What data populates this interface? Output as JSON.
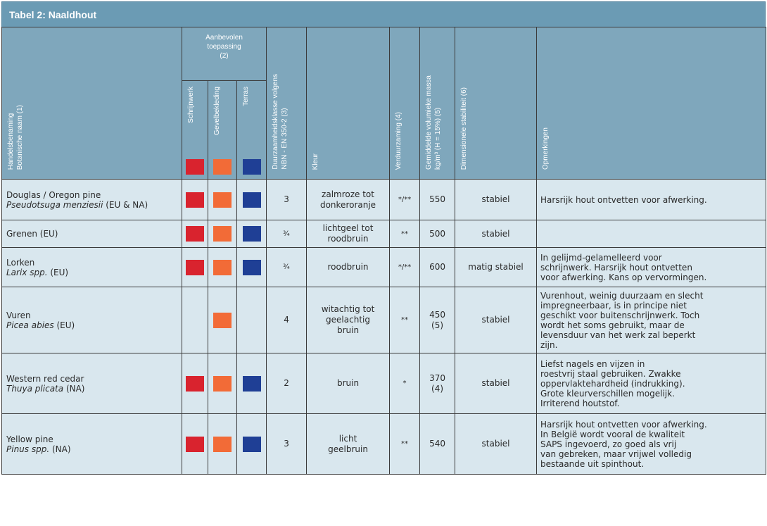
{
  "table": {
    "title": "Tabel 2: Naaldhout",
    "headers": {
      "name": [
        "Handelsbenaming",
        "Botanische naam (1)"
      ],
      "application_group": [
        "Aanbevolen",
        "toepassing",
        "(2)"
      ],
      "applications": [
        {
          "label": "Schrijnwerk",
          "color": "#d9232e"
        },
        {
          "label": "Gevelbekleding",
          "color": "#f26b37"
        },
        {
          "label": "Terras",
          "color": "#1f3f95"
        }
      ],
      "durability": [
        "Duurzaamheidsklasse volgens",
        "NBN - EN 350-2 (3)"
      ],
      "colour": "Kleur",
      "treatment": "Verduurzaming  (4)",
      "density": [
        "Gemiddelde volumieke massa",
        "kg/m³ (H = 15%) (5)"
      ],
      "stability": "Dimensionele stabiliteit (6)",
      "remarks": "Opmerkingen"
    },
    "rows": [
      {
        "trade_name": "Douglas / Oregon pine",
        "botanical": "Pseudotsuga menziesii",
        "origin": "(EU & NA)",
        "applications": [
          true,
          true,
          true
        ],
        "durability": "3",
        "colour": [
          "zalmroze tot",
          "donkeroranje"
        ],
        "treatment": "*/**",
        "density": [
          "550"
        ],
        "stability": "stabiel",
        "remarks": [
          "Harsrijk hout ontvetten voor afwerking."
        ]
      },
      {
        "trade_name": "Grenen (EU)",
        "botanical": "",
        "origin": "",
        "applications": [
          true,
          true,
          true
        ],
        "durability": "¾",
        "colour": [
          "lichtgeel tot",
          "roodbruin"
        ],
        "treatment": "**",
        "density": [
          "500"
        ],
        "stability": "stabiel",
        "remarks": []
      },
      {
        "trade_name": "Lorken",
        "botanical": "Larix spp.",
        "origin": "(EU)",
        "applications": [
          true,
          true,
          true
        ],
        "durability": "¾",
        "colour": [
          "roodbruin"
        ],
        "treatment": "*/**",
        "density": [
          "600"
        ],
        "stability": "matig stabiel",
        "remarks": [
          "In gelijmd-gelamelleerd voor",
          "schrijnwerk. Harsrijk hout ontvetten",
          "voor afwerking. Kans op vervormingen."
        ]
      },
      {
        "trade_name": "Vuren",
        "botanical": "Picea abies",
        "origin": "(EU)",
        "applications": [
          false,
          true,
          false
        ],
        "durability": "4",
        "colour": [
          "witachtig tot",
          "geelachtig",
          "bruin"
        ],
        "treatment": "**",
        "density": [
          "450",
          "(5)"
        ],
        "stability": "stabiel",
        "remarks": [
          "Vurenhout, weinig duurzaam en slecht",
          "impregneerbaar, is in principe niet",
          "geschikt voor buitenschrijnwerk. Toch",
          "wordt het soms gebruikt, maar de",
          "levensduur van het werk zal beperkt",
          "zijn."
        ]
      },
      {
        "trade_name": "Western red cedar",
        "botanical": "Thuya plicata",
        "origin": "(NA)",
        "applications": [
          true,
          true,
          true
        ],
        "durability": "2",
        "colour": [
          "bruin"
        ],
        "treatment": "*",
        "density": [
          "370",
          "(4)"
        ],
        "stability": "stabiel",
        "remarks": [
          "Liefst nagels en vijzen in",
          "roestvrij staal gebruiken. Zwakke",
          "oppervlaktehardheid (indrukking).",
          "Grote kleurverschillen mogelijk.",
          "Irriterend houtstof."
        ]
      },
      {
        "trade_name": "Yellow pine",
        "botanical": "Pinus spp.",
        "origin": "(NA)",
        "applications": [
          true,
          true,
          true
        ],
        "durability": "3",
        "colour": [
          "licht",
          "geelbruin"
        ],
        "treatment": "**",
        "density": [
          "540"
        ],
        "stability": "stabiel",
        "remarks": [
          "Harsrijk hout ontvetten voor afwerking.",
          "In België wordt vooral de kwaliteit",
          "SAPS ingevoerd, zo goed als vrij",
          "van gebreken, maar vrijwel volledig",
          "bestaande uit spinthout."
        ]
      }
    ]
  }
}
